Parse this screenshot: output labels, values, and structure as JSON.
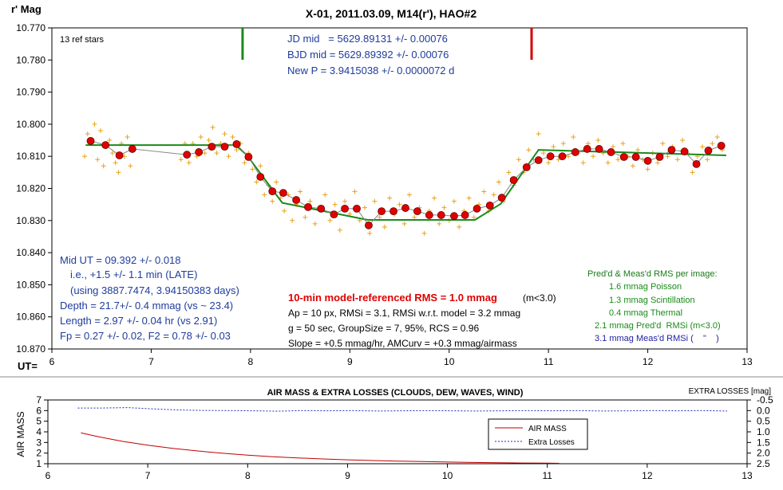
{
  "chart_data": [
    {
      "type": "line",
      "title": "X-01, 2011.03.09, M14(r'), HAO#2",
      "ylabel": "r' Mag",
      "xlabel": "UT=",
      "xlim": [
        6,
        13
      ],
      "xticks": [
        6,
        7,
        8,
        9,
        10,
        11,
        12,
        13
      ],
      "ylim": [
        10.77,
        10.87
      ],
      "y_inverted": true,
      "yticks": [
        {
          "value": 10.77,
          "label": "10.770"
        },
        {
          "value": 10.78,
          "label": "10.780"
        },
        {
          "value": 10.79,
          "label": "10.790"
        },
        {
          "value": 10.8,
          "label": "10.800"
        },
        {
          "value": 10.81,
          "label": "10.810"
        },
        {
          "value": 10.82,
          "label": "10.820"
        },
        {
          "value": 10.83,
          "label": "10.830"
        },
        {
          "value": 10.84,
          "label": "10.840"
        },
        {
          "value": 10.85,
          "label": "10.850"
        },
        {
          "value": 10.86,
          "label": "10.860"
        },
        {
          "value": 10.87,
          "label": "10.870"
        }
      ],
      "event_marks": [
        {
          "x": 7.92,
          "color": "#1a8a1a"
        },
        {
          "x": 10.83,
          "color": "#d00000"
        }
      ],
      "series": [
        {
          "style": "crosses",
          "color": "#e8a21c",
          "x": [
            6.33,
            6.36,
            6.4,
            6.43,
            6.46,
            6.49,
            6.52,
            6.55,
            6.58,
            6.61,
            6.64,
            6.67,
            6.7,
            6.73,
            6.76,
            6.79,
            6.82,
            7.3,
            7.34,
            7.38,
            7.42,
            7.46,
            7.5,
            7.54,
            7.58,
            7.62,
            7.66,
            7.7,
            7.74,
            7.78,
            7.82,
            7.86,
            7.9,
            7.94,
            7.98,
            8.02,
            8.06,
            8.1,
            8.14,
            8.18,
            8.22,
            8.26,
            8.3,
            8.34,
            8.38,
            8.42,
            8.46,
            8.5,
            8.55,
            8.6,
            8.65,
            8.7,
            8.75,
            8.8,
            8.85,
            8.9,
            8.95,
            9.0,
            9.05,
            9.1,
            9.15,
            9.2,
            9.25,
            9.3,
            9.35,
            9.4,
            9.45,
            9.5,
            9.55,
            9.6,
            9.65,
            9.7,
            9.75,
            9.8,
            9.85,
            9.9,
            9.95,
            10.0,
            10.05,
            10.1,
            10.15,
            10.2,
            10.25,
            10.3,
            10.35,
            10.4,
            10.45,
            10.5,
            10.55,
            10.6,
            10.65,
            10.7,
            10.75,
            10.8,
            10.85,
            10.9,
            10.95,
            11.0,
            11.05,
            11.1,
            11.15,
            11.2,
            11.25,
            11.3,
            11.35,
            11.4,
            11.45,
            11.5,
            11.55,
            11.6,
            11.65,
            11.7,
            11.75,
            11.8,
            11.85,
            11.9,
            11.95,
            12.0,
            12.05,
            12.1,
            12.15,
            12.2,
            12.25,
            12.3,
            12.35,
            12.4,
            12.45,
            12.5,
            12.55,
            12.6,
            12.65,
            12.7,
            12.75
          ],
          "values": [
            10.81,
            10.803,
            10.806,
            10.8,
            10.811,
            10.802,
            10.813,
            10.806,
            10.805,
            10.809,
            10.812,
            10.815,
            10.806,
            10.81,
            10.804,
            10.813,
            10.808,
            10.811,
            10.806,
            10.812,
            10.806,
            10.81,
            10.804,
            10.809,
            10.805,
            10.801,
            10.809,
            10.806,
            10.803,
            10.81,
            10.804,
            10.808,
            10.806,
            10.812,
            10.809,
            10.814,
            10.818,
            10.813,
            10.822,
            10.819,
            10.824,
            10.818,
            10.823,
            10.827,
            10.822,
            10.83,
            10.825,
            10.821,
            10.829,
            10.824,
            10.831,
            10.826,
            10.822,
            10.83,
            10.825,
            10.833,
            10.824,
            10.828,
            10.821,
            10.83,
            10.826,
            10.834,
            10.824,
            10.829,
            10.832,
            10.823,
            10.828,
            10.825,
            10.831,
            10.822,
            10.829,
            10.826,
            10.834,
            10.827,
            10.823,
            10.831,
            10.826,
            10.83,
            10.824,
            10.832,
            10.827,
            10.823,
            10.829,
            10.825,
            10.821,
            10.827,
            10.822,
            10.818,
            10.824,
            10.815,
            10.819,
            10.811,
            10.815,
            10.808,
            10.811,
            10.803,
            10.809,
            10.812,
            10.807,
            10.811,
            10.806,
            10.81,
            10.804,
            10.809,
            10.812,
            10.806,
            10.81,
            10.805,
            10.809,
            10.812,
            10.807,
            10.811,
            10.806,
            10.81,
            10.813,
            10.808,
            10.811,
            10.814,
            10.809,
            10.812,
            10.806,
            10.81,
            10.807,
            10.811,
            10.805,
            10.809,
            10.815,
            10.81,
            10.807,
            10.811,
            10.806,
            10.804,
            10.808
          ]
        },
        {
          "style": "line",
          "color": "#1a8a1a",
          "x": [
            6.34,
            7.85,
            7.96,
            8.32,
            9.18,
            10.26,
            10.52,
            10.9,
            12.79
          ],
          "values": [
            10.8065,
            10.8065,
            10.8095,
            10.8245,
            10.8298,
            10.8298,
            10.8248,
            10.808,
            10.8097
          ]
        },
        {
          "style": "dots",
          "color": "#e00000",
          "x": [
            6.39,
            6.54,
            6.68,
            6.81,
            7.36,
            7.48,
            7.61,
            7.74,
            7.86,
            7.98,
            8.1,
            8.22,
            8.33,
            8.46,
            8.58,
            8.71,
            8.84,
            8.95,
            9.07,
            9.19,
            9.32,
            9.44,
            9.56,
            9.68,
            9.8,
            9.92,
            10.05,
            10.16,
            10.28,
            10.41,
            10.53,
            10.65,
            10.78,
            10.9,
            11.02,
            11.14,
            11.27,
            11.39,
            11.51,
            11.63,
            11.76,
            11.88,
            12.0,
            12.12,
            12.24,
            12.37,
            12.49,
            12.61,
            12.74
          ],
          "values": [
            10.8052,
            10.8065,
            10.8097,
            10.8077,
            10.8095,
            10.8087,
            10.807,
            10.807,
            10.8062,
            10.8102,
            10.8164,
            10.8209,
            10.8214,
            10.8236,
            10.8258,
            10.8263,
            10.8281,
            10.8263,
            10.8263,
            10.8315,
            10.8271,
            10.8271,
            10.8261,
            10.8271,
            10.8283,
            10.8283,
            10.8286,
            10.8283,
            10.8263,
            10.8253,
            10.8229,
            10.8174,
            10.8134,
            10.8112,
            10.81,
            10.81,
            10.8087,
            10.8077,
            10.8077,
            10.8087,
            10.8102,
            10.8102,
            10.8114,
            10.8102,
            10.808,
            10.8085,
            10.8124,
            10.8082,
            10.8067
          ]
        }
      ],
      "annotations": [
        {
          "text": "13 ref stars",
          "color": "#000000"
        },
        {
          "text": "JD mid   = 5629.89131 +/- 0.00076",
          "color": "#1f3c9c"
        },
        {
          "text": "BJD mid = 5629.89392 +/- 0.00076",
          "color": "#1f3c9c"
        },
        {
          "text": "New P = 3.9415038 +/- 0.0000072 d",
          "color": "#1f3c9c"
        },
        {
          "text": "Mid UT = 09.392 +/- 0.018",
          "color": "#1f3c9c"
        },
        {
          "text": "i.e., +1.5 +/- 1.1 min (LATE)",
          "color": "#1f3c9c"
        },
        {
          "text": "(using 3887.7474, 3.94150383 days)",
          "color": "#1f3c9c"
        },
        {
          "text": "Depth = 21.7+/- 0.4 mmag (vs ~ 23.4)",
          "color": "#1f3c9c"
        },
        {
          "text": "Length = 2.97 +/- 0.04 hr (vs 2.91)",
          "color": "#1f3c9c"
        },
        {
          "text": "Fp = 0.27 +/- 0.02, F2 = 0.78 +/- 0.03",
          "color": "#1f3c9c"
        },
        {
          "text": "10-min model-referenced RMS = 1.0 mmag",
          "color": "#e00000"
        },
        {
          "text": "(m<3.0)",
          "color": "#000000"
        },
        {
          "text": "Ap = 10 px, RMSi = 3.1, RMSi w.r.t. model = 3.2 mmag",
          "color": "#000000"
        },
        {
          "text": "g = 50 sec, GroupSize = 7, 95%, RCS = 0.96",
          "color": "#000000"
        },
        {
          "text": "Slope = +0.5 mmag/hr, AMCurv = +0.3 mmag/airmass",
          "color": "#000000"
        },
        {
          "text": "Pred'd & Meas'd RMS per image:",
          "color": "#1a7a1a"
        },
        {
          "text": "1.6 mmag Poisson",
          "color": "#1a8a1a"
        },
        {
          "text": "1.3 mmag Scintillation",
          "color": "#1a8a1a"
        },
        {
          "text": "0.4 mmag Thermal",
          "color": "#1a8a1a"
        },
        {
          "text": "2.1 mmag Pred'd  RMSi (m<3.0)",
          "color": "#1a8a1a"
        },
        {
          "text": "3.1 mmag Meas'd RMSi (    \"    )",
          "color": "#1f1fa0"
        }
      ]
    },
    {
      "type": "line",
      "title": "AIR MASS & EXTRA LOSSES (CLOUDS, DEW, WAVES, WIND)",
      "ylabel": "AIR MASS",
      "y2label": "EXTRA LOSSES [mag]",
      "xlim": [
        6,
        13
      ],
      "xticks": [
        6,
        7,
        8,
        9,
        10,
        11,
        12,
        13
      ],
      "ylim": [
        1,
        7
      ],
      "yticks": [
        1,
        2,
        3,
        4,
        5,
        6,
        7
      ],
      "y2lim": [
        -0.5,
        2.5
      ],
      "y2_inverted": true,
      "y2ticks": [
        -0.5,
        {
          "value": 0,
          "label": "0.0"
        },
        0.5,
        {
          "value": 1,
          "label": "1.0"
        },
        1.5,
        {
          "value": 2,
          "label": "2.0"
        },
        2.5
      ],
      "legend": "inside",
      "series": [
        {
          "name": "AIR MASS",
          "color": "#c00000",
          "dash": false,
          "x": [
            6.33,
            6.5,
            6.75,
            7,
            7.25,
            7.5,
            7.75,
            8,
            8.25,
            8.5,
            8.75,
            9,
            9.25,
            9.5,
            9.75,
            10,
            10.25,
            10.5,
            10.75,
            11,
            11.12
          ],
          "values": [
            3.9,
            3.55,
            3.1,
            2.75,
            2.45,
            2.2,
            1.98,
            1.8,
            1.66,
            1.55,
            1.45,
            1.37,
            1.3,
            1.25,
            1.2,
            1.16,
            1.12,
            1.09,
            1.07,
            1.05,
            1.04
          ]
        },
        {
          "name": "Extra Losses",
          "color": "#1f2fb0",
          "dash": true,
          "axis": "y2",
          "x": [
            6.3,
            6.55,
            6.8,
            7.05,
            7.3,
            7.55,
            7.8,
            8.05,
            8.3,
            8.55,
            8.8,
            9.05,
            9.3,
            9.55,
            9.8,
            10.05,
            10.3,
            10.55,
            10.8,
            11.05,
            11.3,
            11.55,
            11.8,
            12.05,
            12.3,
            12.55,
            12.8
          ],
          "values": [
            -0.12,
            -0.12,
            -0.14,
            -0.08,
            -0.03,
            -0.01,
            0.0,
            0.01,
            0.03,
            0.0,
            0.01,
            0.0,
            0.02,
            0.01,
            0.0,
            0.01,
            0.02,
            0.01,
            0.0,
            0.01,
            0.0,
            0.02,
            0.01,
            0.0,
            0.01,
            0.0,
            0.02
          ]
        }
      ]
    }
  ]
}
